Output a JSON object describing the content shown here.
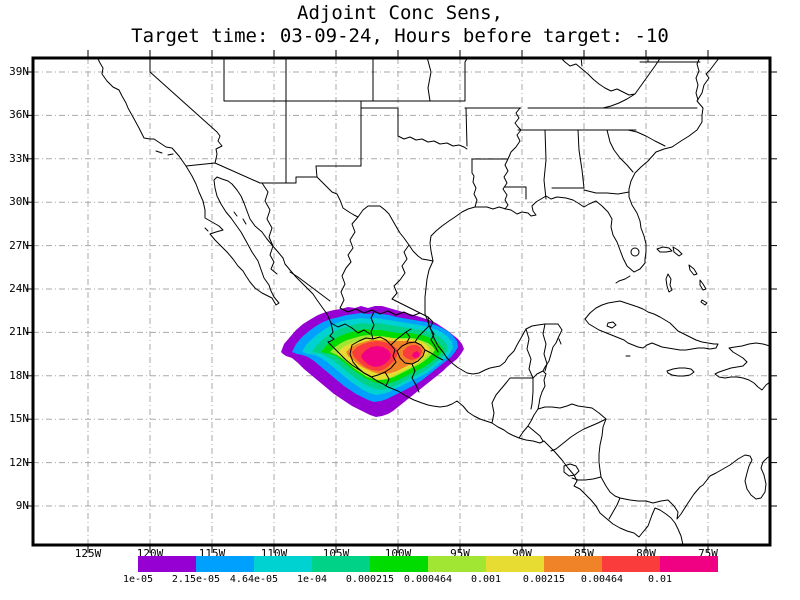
{
  "chart_data": {
    "type": "filled-contour-map",
    "title": "Adjoint Conc Sens,",
    "subtitle": "Target time: 03-09-24, Hours before target: -10",
    "variable": "Adjoint concentration sensitivity",
    "target_time": "03-09-24",
    "hours_before_target": -10,
    "map_region": "North America / Mexico / Gulf of Mexico / Caribbean",
    "lat_ticks": [
      "39N",
      "36N",
      "33N",
      "30N",
      "27N",
      "24N",
      "21N",
      "18N",
      "15N",
      "12N",
      "9N"
    ],
    "lon_ticks": [
      "125W",
      "120W",
      "115W",
      "110W",
      "105W",
      "100W",
      "95W",
      "90W",
      "85W",
      "80W",
      "75W"
    ],
    "contour_levels": [
      "1e-05",
      "2.15e-05",
      "4.64e-05",
      "1e-04",
      "0.000215",
      "0.000464",
      "0.001",
      "0.00215",
      "0.00464",
      "0.01"
    ],
    "palette": [
      "#9600d2",
      "#00a0ff",
      "#00d2d2",
      "#00d287",
      "#00dc00",
      "#a0e632",
      "#e6dc32",
      "#f08228",
      "#fa3c3c",
      "#f00082"
    ],
    "grid_color": "#aaaaaa",
    "line_color": "#000000",
    "legend_position": "bottom",
    "grid_style": "dash-dot graticule every 5 deg lon / 3 deg lat",
    "plume": {
      "description": "sensitivity plume centered over central Mexico",
      "approx_extent": "109.5W-94.5W, 15N-23N",
      "primary_max_near": "101.7W, 19.2N",
      "secondary_max_near": "98.5W, 19.4N",
      "max_band": "> 0.01"
    }
  }
}
